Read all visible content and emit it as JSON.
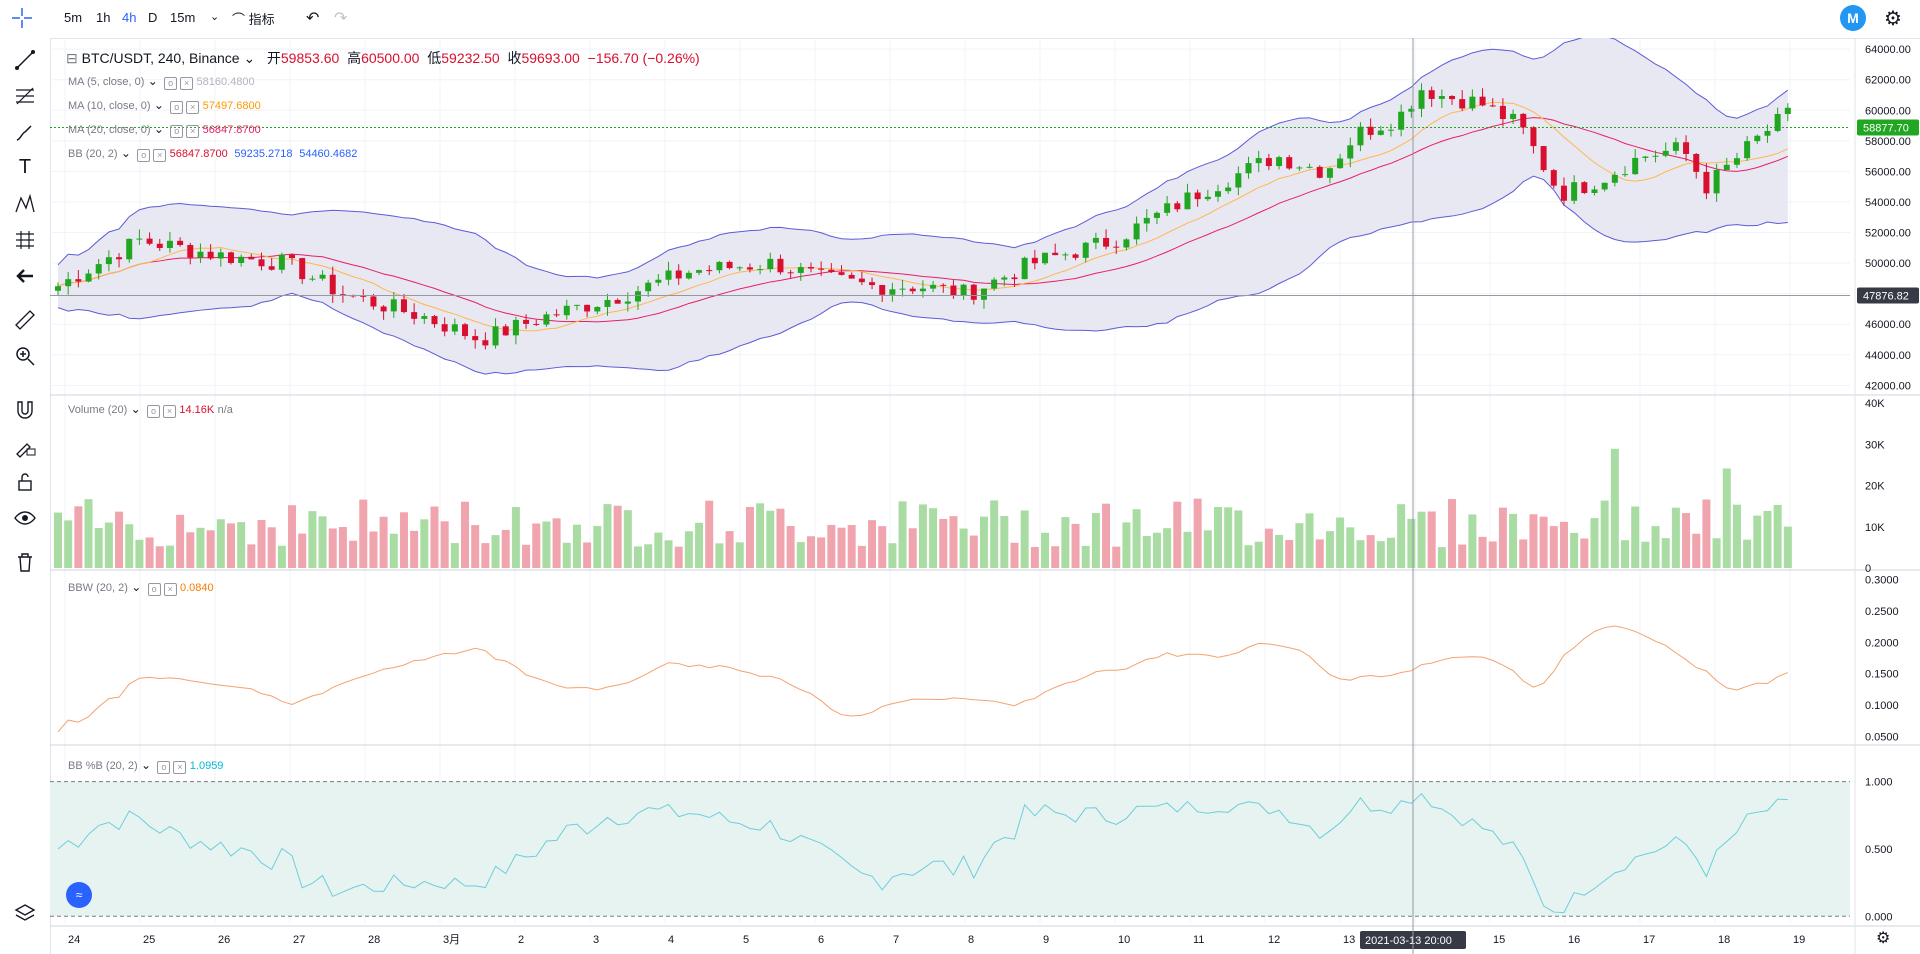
{
  "toolbar": {
    "timeframes": [
      "5m",
      "1h",
      "4h",
      "D",
      "15m"
    ],
    "active_timeframe": "4h",
    "indicators_label": "指标",
    "undo_icon": "undo-icon",
    "redo_icon": "redo-icon"
  },
  "left_tools": [
    "crosshair-icon",
    "trend-line-icon",
    "fib-icon",
    "brush-icon",
    "text-icon",
    "pattern-icon",
    "forecast-icon",
    "back-arrow-icon",
    "ruler-icon",
    "zoom-icon",
    "magnet-icon",
    "lock-drawing-icon",
    "unlock-icon",
    "eye-icon",
    "trash-icon",
    "layers-icon"
  ],
  "symbol": {
    "name": "BTC/USDT, 240, Binance",
    "open_label": "开",
    "open": "59853.60",
    "high_label": "高",
    "high": "60500.00",
    "low_label": "低",
    "low": "59232.50",
    "close_label": "收",
    "close": "59693.00",
    "change": "−156.70 (−0.26%)"
  },
  "indicators": {
    "ma5": {
      "label": "MA (5, close, 0)",
      "value": "58160.4800",
      "color": "#b2b5be"
    },
    "ma10": {
      "label": "MA (10, close, 0)",
      "value": "57497.6800",
      "color": "#ff9800"
    },
    "ma20": {
      "label": "MA (20, close, 0)",
      "value": "56847.8700",
      "color": "#e91e63"
    },
    "bb": {
      "label": "BB (20, 2)",
      "v1": "56847.8700",
      "v2": "59235.2718",
      "v3": "54460.4682"
    },
    "volume": {
      "label": "Volume (20)",
      "value": "14.16K",
      "value2": "n/a"
    },
    "bbw": {
      "label": "BBW (20, 2)",
      "value": "0.0840"
    },
    "bbpb": {
      "label": "BB %B (20, 2)",
      "value": "1.0959"
    }
  },
  "price_axis": {
    "main_ticks": [
      "64000.00",
      "62000.00",
      "60000.00",
      "58000.00",
      "56000.00",
      "54000.00",
      "52000.00",
      "50000.00",
      "48000.00",
      "46000.00",
      "44000.00",
      "42000.00"
    ],
    "last_price": "58877.70",
    "crosshair_price": "47876.82",
    "volume_ticks": [
      "40K",
      "30K",
      "20K",
      "10K",
      "0"
    ],
    "bbw_ticks": [
      "0.3000",
      "0.2500",
      "0.2000",
      "0.1500",
      "0.1000",
      "0.0500"
    ],
    "bbpb_ticks": [
      "1.000",
      "0.500",
      "0.000"
    ]
  },
  "time_axis": {
    "labels": [
      "24",
      "25",
      "26",
      "27",
      "28",
      "3月",
      "2",
      "3",
      "4",
      "5",
      "6",
      "7",
      "8",
      "9",
      "10",
      "11",
      "12",
      "13",
      "15",
      "16",
      "17",
      "18",
      "19"
    ],
    "crosshair_time": "2021-03-13",
    "crosshair_hour": "20:00"
  },
  "colors": {
    "up": "#26a69a",
    "up_candle": "#21a621",
    "down": "#d80f2f",
    "bb_fill": "#e6e5f2",
    "bb_band": "#5b5bd6",
    "bbw": "#f4a26d",
    "bbpb": "#6ccedb"
  }
}
